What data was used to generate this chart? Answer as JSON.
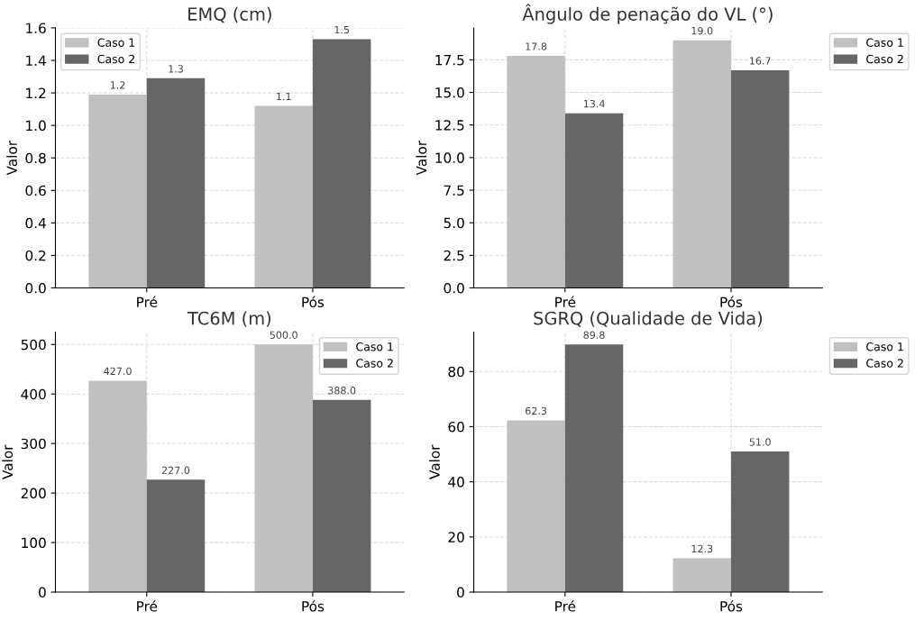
{
  "chart_data": [
    {
      "type": "bar",
      "title": "EMQ (cm)",
      "ylabel": "Valor",
      "categories": [
        "Pré",
        "Pós"
      ],
      "ylim": [
        0,
        1.6
      ],
      "yticks": [
        {
          "value": 0,
          "label": "0.0"
        },
        {
          "value": 0.2,
          "label": "0.2"
        },
        {
          "value": 0.4,
          "label": "0.4"
        },
        {
          "value": 0.6,
          "label": "0.6"
        },
        {
          "value": 0.8,
          "label": "0.8"
        },
        {
          "value": 1.0,
          "label": "1.0"
        },
        {
          "value": 1.2,
          "label": "1.2"
        },
        {
          "value": 1.4,
          "label": "1.4"
        },
        {
          "value": 1.6,
          "label": "1.6"
        }
      ],
      "grid": true,
      "legend": "top left",
      "series": [
        {
          "name": "Caso 1",
          "color": "#c0c0c0",
          "values": [
            1.19,
            1.12
          ],
          "value_labels": [
            "1.2",
            "1.1"
          ]
        },
        {
          "name": "Caso 2",
          "color": "#666666",
          "values": [
            1.29,
            1.53
          ],
          "value_labels": [
            "1.3",
            "1.5"
          ]
        }
      ]
    },
    {
      "type": "bar",
      "title": "Ângulo de penação do VL (°)",
      "ylabel": "Valor",
      "categories": [
        "Pré",
        "Pós"
      ],
      "ylim": [
        0,
        19.95
      ],
      "yticks": [
        {
          "value": 0,
          "label": "0.0"
        },
        {
          "value": 2.5,
          "label": "2.5"
        },
        {
          "value": 5,
          "label": "5.0"
        },
        {
          "value": 7.5,
          "label": "7.5"
        },
        {
          "value": 10,
          "label": "10.0"
        },
        {
          "value": 12.5,
          "label": "12.5"
        },
        {
          "value": 15,
          "label": "15.0"
        },
        {
          "value": 17.5,
          "label": "17.5"
        }
      ],
      "grid": true,
      "legend": "right",
      "series": [
        {
          "name": "Caso 1",
          "color": "#c0c0c0",
          "values": [
            17.8,
            19.0
          ],
          "value_labels": [
            "17.8",
            "19.0"
          ]
        },
        {
          "name": "Caso 2",
          "color": "#666666",
          "values": [
            13.4,
            16.7
          ],
          "value_labels": [
            "13.4",
            "16.7"
          ]
        }
      ]
    },
    {
      "type": "bar",
      "title": "TC6M (m)",
      "ylabel": "Valor",
      "categories": [
        "Pré",
        "Pós"
      ],
      "ylim": [
        0,
        525
      ],
      "yticks": [
        0,
        100,
        200,
        300,
        400,
        500
      ],
      "grid": true,
      "legend": "top right",
      "series": [
        {
          "name": "Caso 1",
          "color": "#c0c0c0",
          "values": [
            427,
            500
          ],
          "value_labels": [
            "427.0",
            "500.0"
          ]
        },
        {
          "name": "Caso 2",
          "color": "#666666",
          "values": [
            227,
            388
          ],
          "value_labels": [
            "227.0",
            "388.0"
          ]
        }
      ]
    },
    {
      "type": "bar",
      "title": "SGRQ (Qualidade de Vida)",
      "ylabel": "Valor",
      "categories": [
        "Pré",
        "Pós"
      ],
      "ylim": [
        0,
        94.3
      ],
      "yticks": [
        0,
        20,
        40,
        60,
        80
      ],
      "grid": true,
      "legend": "right",
      "series": [
        {
          "name": "Caso 1",
          "color": "#c0c0c0",
          "values": [
            62.3,
            12.3
          ],
          "value_labels": [
            "62.3",
            "12.3"
          ]
        },
        {
          "name": "Caso 2",
          "color": "#666666",
          "values": [
            89.8,
            51.0
          ],
          "value_labels": [
            "89.8",
            "51.0"
          ]
        }
      ]
    }
  ]
}
